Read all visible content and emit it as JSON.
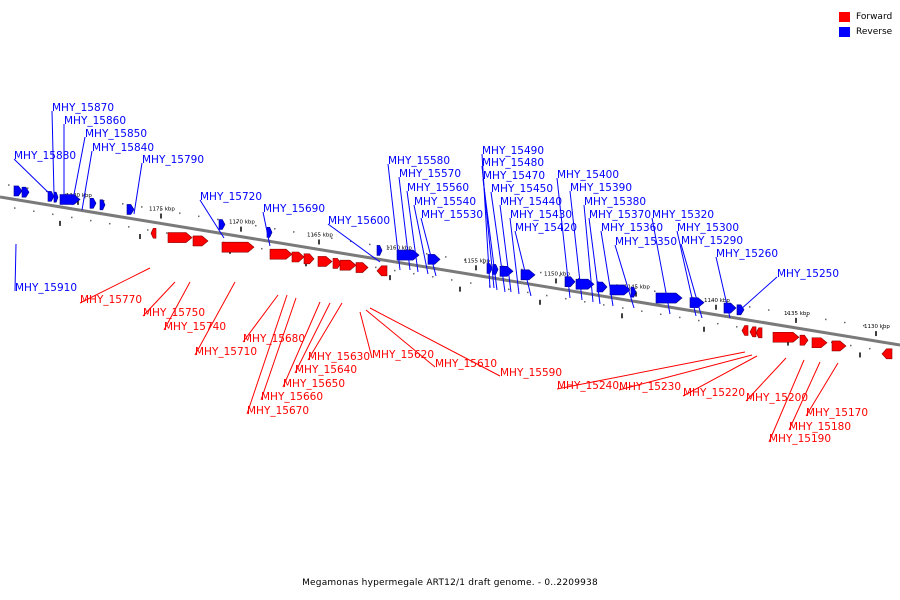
{
  "legend": {
    "forward_label": "Forward",
    "reverse_label": "Reverse",
    "forward_color": "#ff0000",
    "reverse_color": "#0000ff"
  },
  "caption": "Megamonas hypermegale ART12/1 draft genome. - 0..2209938",
  "scale_ticks": [
    "1180 kbp",
    "1175 kbp",
    "1170 kbp",
    "1165 kbp",
    "1160 kbp",
    "1155 kbp",
    "1150 kbp",
    "1145 kbp",
    "1140 kbp",
    "1135 kbp",
    "1130 kbp"
  ],
  "reverse_genes": [
    "MHY_15870",
    "MHY_15860",
    "MHY_15850",
    "MHY_15840",
    "MHY_15880",
    "MHY_15790",
    "MHY_15720",
    "MHY_15690",
    "MHY_15600",
    "MHY_15910",
    "MHY_15580",
    "MHY_15570",
    "MHY_15560",
    "MHY_15540",
    "MHY_15530",
    "MHY_15490",
    "MHY_15480",
    "MHY_15470",
    "MHY_15450",
    "MHY_15440",
    "MHY_15430",
    "MHY_15420",
    "MHY_15400",
    "MHY_15390",
    "MHY_15380",
    "MHY_15370",
    "MHY_15360",
    "MHY_15350",
    "MHY_15320",
    "MHY_15300",
    "MHY_15290",
    "MHY_15260",
    "MHY_15250"
  ],
  "forward_genes": [
    "MHY_15770",
    "MHY_15750",
    "MHY_15740",
    "MHY_15710",
    "MHY_15680",
    "MHY_15630",
    "MHY_15640",
    "MHY_15650",
    "MHY_15660",
    "MHY_15670",
    "MHY_15620",
    "MHY_15610",
    "MHY_15590",
    "MHY_15240",
    "MHY_15230",
    "MHY_15220",
    "MHY_15200",
    "MHY_15170",
    "MHY_15180",
    "MHY_15190"
  ]
}
